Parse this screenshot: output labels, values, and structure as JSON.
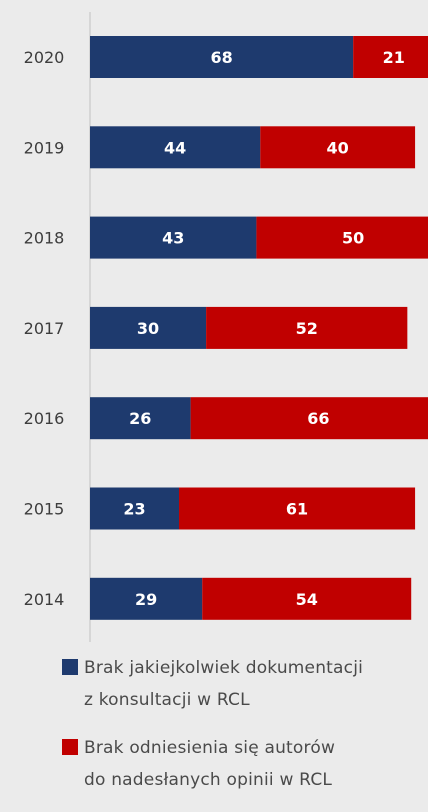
{
  "chart_data": {
    "type": "bar",
    "orientation": "horizontal",
    "stacked": true,
    "categories": [
      "2020",
      "2019",
      "2018",
      "2017",
      "2016",
      "2015",
      "2014"
    ],
    "series": [
      {
        "name": "Brak jakiejkolwiek dokumentacji z konsultacji w RCL",
        "color": "#1e3a6e",
        "values": [
          68,
          44,
          43,
          30,
          26,
          23,
          29
        ]
      },
      {
        "name": "Brak odniesienia się autorów do nadesłanych opinii w RCL",
        "color": "#c00000",
        "values": [
          21,
          40,
          50,
          52,
          66,
          61,
          54
        ]
      }
    ],
    "data_labels": true,
    "grid": false,
    "legend_position": "bottom"
  },
  "legend": {
    "item1_line1": "Brak jakiejkolwiek dokumentacji",
    "item1_line2": "z konsultacji w RCL",
    "item2_line1": "Brak odniesienia się autorów",
    "item2_line2": "do nadesłanych opinii w RCL"
  },
  "colors": {
    "background": "#ebebeb",
    "series1": "#1e3a6e",
    "series2": "#c00000",
    "axis": "#c8c8c8"
  }
}
